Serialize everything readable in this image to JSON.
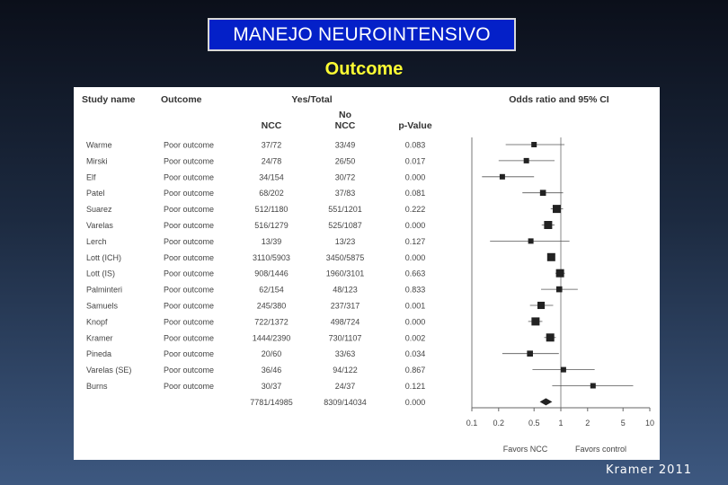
{
  "slide": {
    "title": "MANEJO  NEUROINTENSIVO",
    "subtitle": "Outcome",
    "footer": "Kramer 2011"
  },
  "colors": {
    "title_bg": "#0420c8",
    "subtitle": "#ffff33",
    "marker": "#222222"
  },
  "headers": {
    "study": "Study name",
    "outcome": "Outcome",
    "yes_total": "Yes/Total",
    "ncc": "NCC",
    "no_ncc_1": "No",
    "no_ncc_2": "NCC",
    "pvalue": "p-Value",
    "odds": "Odds ratio and 95% CI"
  },
  "chart_data": {
    "type": "forest",
    "title": "Odds ratio and 95% CI",
    "x_scale": "log",
    "xlim": [
      0.1,
      10
    ],
    "x_ticks": [
      "0.1",
      "0.2",
      "0.5",
      "1",
      "2",
      "5",
      "10"
    ],
    "x_tick_values": [
      0.1,
      0.2,
      0.5,
      1,
      2,
      5,
      10
    ],
    "x_labels": [
      "Favors NCC",
      "Favors control"
    ],
    "rows": [
      {
        "study": "Warme",
        "outcome": "Poor outcome",
        "ncc": "37/72",
        "no_ncc": "33/49",
        "p": "0.083",
        "or": 0.5,
        "lo": 0.24,
        "hi": 1.1,
        "w": 1
      },
      {
        "study": "Mirski",
        "outcome": "Poor outcome",
        "ncc": "24/78",
        "no_ncc": "26/50",
        "p": "0.017",
        "or": 0.41,
        "lo": 0.2,
        "hi": 0.85,
        "w": 1
      },
      {
        "study": "Elf",
        "outcome": "Poor outcome",
        "ncc": "34/154",
        "no_ncc": "30/72",
        "p": "0.000",
        "or": 0.22,
        "lo": 0.13,
        "hi": 0.5,
        "w": 1
      },
      {
        "study": "Patel",
        "outcome": "Poor outcome",
        "ncc": "68/202",
        "no_ncc": "37/83",
        "p": "0.081",
        "or": 0.63,
        "lo": 0.37,
        "hi": 1.06,
        "w": 1.2
      },
      {
        "study": "Suarez",
        "outcome": "Poor outcome",
        "ncc": "512/1180",
        "no_ncc": "551/1201",
        "p": "0.222",
        "or": 0.9,
        "lo": 0.77,
        "hi": 1.06,
        "w": 2
      },
      {
        "study": "Varelas",
        "outcome": "Poor outcome",
        "ncc": "516/1279",
        "no_ncc": "525/1087",
        "p": "0.000",
        "or": 0.72,
        "lo": 0.61,
        "hi": 0.85,
        "w": 2
      },
      {
        "study": "Lerch",
        "outcome": "Poor outcome",
        "ncc": "13/39",
        "no_ncc": "13/23",
        "p": "0.127",
        "or": 0.46,
        "lo": 0.16,
        "hi": 1.25,
        "w": 1
      },
      {
        "study": "Lott (ICH)",
        "outcome": "Poor outcome",
        "ncc": "3110/5903",
        "no_ncc": "3450/5875",
        "p": "0.000",
        "or": 0.78,
        "lo": 0.73,
        "hi": 0.84,
        "w": 2
      },
      {
        "study": "Lott (IS)",
        "outcome": "Poor outcome",
        "ncc": "908/1446",
        "no_ncc": "1960/3101",
        "p": "0.663",
        "or": 0.98,
        "lo": 0.87,
        "hi": 1.11,
        "w": 2
      },
      {
        "study": "Palminteri",
        "outcome": "Poor outcome",
        "ncc": "62/154",
        "no_ncc": "48/123",
        "p": "0.833",
        "or": 0.96,
        "lo": 0.6,
        "hi": 1.55,
        "w": 1.2
      },
      {
        "study": "Samuels",
        "outcome": "Poor outcome",
        "ncc": "245/380",
        "no_ncc": "237/317",
        "p": "0.001",
        "or": 0.6,
        "lo": 0.45,
        "hi": 0.82,
        "w": 1.7
      },
      {
        "study": "Knopf",
        "outcome": "Poor outcome",
        "ncc": "722/1372",
        "no_ncc": "498/724",
        "p": "0.000",
        "or": 0.52,
        "lo": 0.43,
        "hi": 0.62,
        "w": 2
      },
      {
        "study": "Kramer",
        "outcome": "Poor outcome",
        "ncc": "1444/2390",
        "no_ncc": "730/1107",
        "p": "0.002",
        "or": 0.76,
        "lo": 0.65,
        "hi": 0.88,
        "w": 2
      },
      {
        "study": "Pineda",
        "outcome": "Poor outcome",
        "ncc": "20/60",
        "no_ncc": "33/63",
        "p": "0.034",
        "or": 0.45,
        "lo": 0.22,
        "hi": 0.95,
        "w": 1.2
      },
      {
        "study": "Varelas (SE)",
        "outcome": "Poor outcome",
        "ncc": "36/46",
        "no_ncc": "94/122",
        "p": "0.867",
        "or": 1.07,
        "lo": 0.48,
        "hi": 2.4,
        "w": 1
      },
      {
        "study": "Burns",
        "outcome": "Poor outcome",
        "ncc": "30/37",
        "no_ncc": "24/37",
        "p": "0.121",
        "or": 2.3,
        "lo": 0.8,
        "hi": 6.5,
        "w": 1
      },
      {
        "study": "",
        "outcome": "",
        "ncc": "7781/14985",
        "no_ncc": "8309/14034",
        "p": "0.000",
        "or": 0.68,
        "lo": 0.58,
        "hi": 0.8,
        "w": 0,
        "summary": true
      }
    ]
  }
}
